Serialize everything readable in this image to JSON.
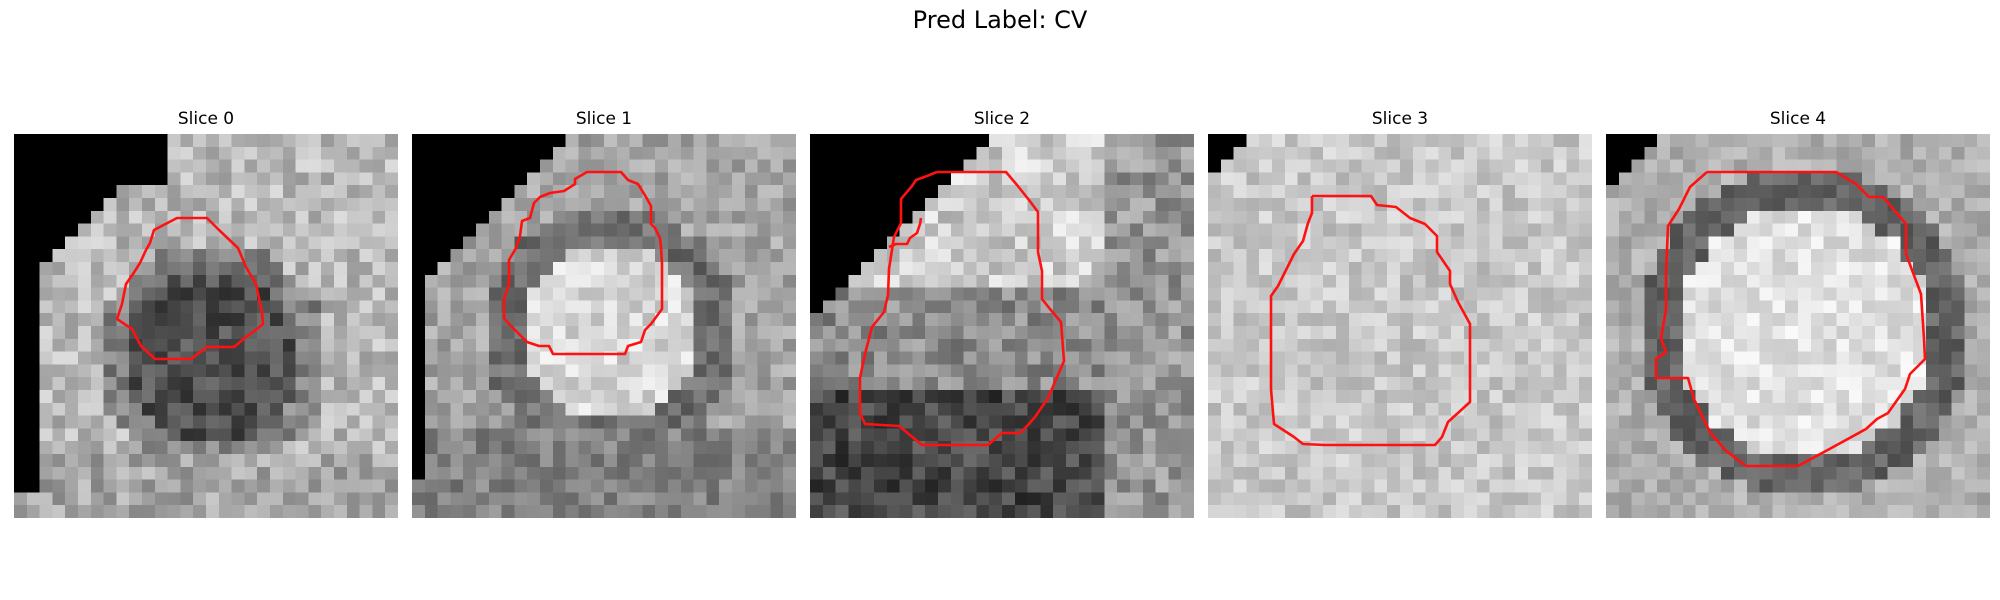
{
  "figure": {
    "title": "Pred Label: CV"
  },
  "panels": [
    {
      "title": "Slice 0",
      "mask_color": "#ff0000"
    },
    {
      "title": "Slice 1",
      "mask_color": "#ff0000"
    },
    {
      "title": "Slice 2",
      "mask_color": "#ff0000"
    },
    {
      "title": "Slice 3",
      "mask_color": "#ff0000"
    },
    {
      "title": "Slice 4",
      "mask_color": "#ff0000"
    }
  ],
  "colormap": "gray"
}
